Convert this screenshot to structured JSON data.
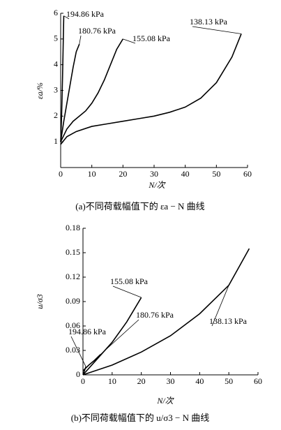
{
  "chart_data": [
    {
      "type": "line",
      "ylabel": "εa/%",
      "xlabel": "N/次",
      "caption": "(a)不同荷载幅值下的 εa − N 曲线",
      "xlim": [
        0,
        60
      ],
      "xticks": [
        0,
        10,
        20,
        30,
        40,
        50,
        60
      ],
      "ylim": [
        0,
        6
      ],
      "yticks": [
        1,
        2,
        3,
        4,
        5,
        6
      ],
      "series": [
        {
          "name": "194.86 kPa",
          "color": "#000000",
          "x": [
            0,
            0.3,
            0.6,
            1
          ],
          "values": [
            1.0,
            2.0,
            3.5,
            5.9
          ]
        },
        {
          "name": "180.76 kPa",
          "color": "#000000",
          "x": [
            0,
            1,
            2,
            3,
            4,
            5,
            6
          ],
          "values": [
            1.0,
            1.8,
            2.5,
            3.2,
            3.9,
            4.5,
            4.8
          ]
        },
        {
          "name": "155.08 kPa",
          "color": "#000000",
          "x": [
            0,
            2,
            4,
            6,
            8,
            10,
            12,
            14,
            16,
            18,
            20
          ],
          "values": [
            1.0,
            1.5,
            1.8,
            2.0,
            2.2,
            2.5,
            2.9,
            3.4,
            4.0,
            4.6,
            5.0
          ]
        },
        {
          "name": "138.13 kPa",
          "color": "#000000",
          "x": [
            0,
            2,
            5,
            10,
            15,
            20,
            25,
            30,
            35,
            40,
            45,
            50,
            55,
            58
          ],
          "values": [
            0.9,
            1.2,
            1.4,
            1.6,
            1.7,
            1.8,
            1.9,
            2.0,
            2.15,
            2.35,
            2.7,
            3.3,
            4.3,
            5.2
          ]
        }
      ]
    },
    {
      "type": "line",
      "ylabel": "u/σ3",
      "xlabel": "N/次",
      "caption": "(b)不同荷载幅值下的 u/σ3 − N 曲线",
      "xlim": [
        0,
        60
      ],
      "xticks": [
        0,
        10,
        20,
        30,
        40,
        50,
        60
      ],
      "ylim": [
        0,
        0.18
      ],
      "yticks": [
        0,
        0.03,
        0.06,
        0.09,
        0.12,
        0.15,
        0.18
      ],
      "series": [
        {
          "name": "194.86 kPa",
          "color": "#000000",
          "x": [
            0,
            0.5,
            1
          ],
          "values": [
            0,
            0.005,
            0.01
          ]
        },
        {
          "name": "180.76 kPa",
          "color": "#000000",
          "x": [
            0,
            2,
            4,
            6
          ],
          "values": [
            0.005,
            0.012,
            0.018,
            0.025
          ]
        },
        {
          "name": "155.08 kPa",
          "color": "#000000",
          "x": [
            0,
            5,
            10,
            15,
            20
          ],
          "values": [
            0,
            0.02,
            0.04,
            0.065,
            0.095
          ]
        },
        {
          "name": "138.13 kPa",
          "color": "#000000",
          "x": [
            0,
            10,
            20,
            30,
            40,
            50,
            57
          ],
          "values": [
            0,
            0.012,
            0.028,
            0.048,
            0.075,
            0.11,
            0.155
          ]
        }
      ]
    }
  ]
}
